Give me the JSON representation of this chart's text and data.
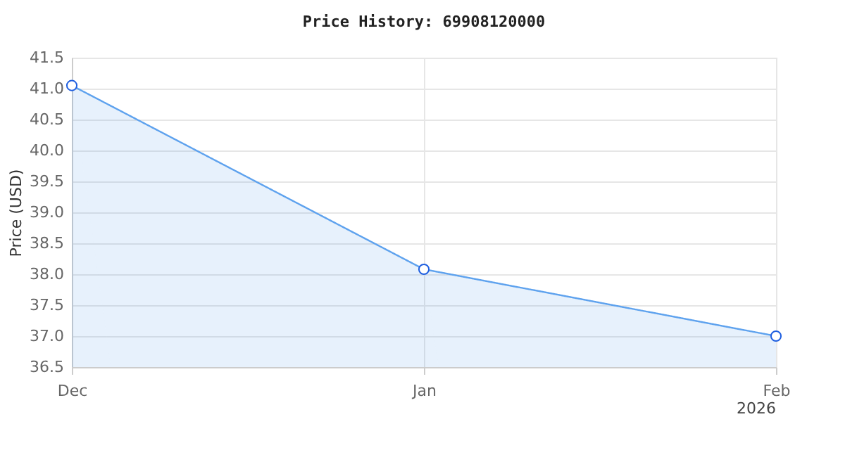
{
  "chart_data": {
    "type": "area",
    "title": "Price History: 69908120000",
    "ylabel": "Price (USD)",
    "x": [
      "2025-12-01",
      "2026-01-01",
      "2026-02-01"
    ],
    "series": [
      {
        "color": "#5ea2ee",
        "values": [
          41.05,
          38.08,
          37.0
        ]
      }
    ],
    "xlim": [
      "2025-12-01",
      "2026-02-01"
    ],
    "xticks": [
      {
        "value": "2025-12-01",
        "label": "Dec"
      },
      {
        "value": "2026-01-01",
        "label": "Jan"
      },
      {
        "value": "2026-02-01",
        "label": "Feb"
      }
    ],
    "ylim": [
      36.5,
      41.5
    ],
    "yticks": [
      36.5,
      {
        "value": 37,
        "label": "37.0"
      },
      37.5,
      {
        "value": 38,
        "label": "38.0"
      },
      38.5,
      {
        "value": 39,
        "label": "39.0"
      },
      39.5,
      {
        "value": 40,
        "label": "40.0"
      },
      40.5,
      {
        "value": 41,
        "label": "41.0"
      },
      41.5
    ],
    "annotations": [
      "2026"
    ],
    "grid": true,
    "marker": "circle"
  }
}
